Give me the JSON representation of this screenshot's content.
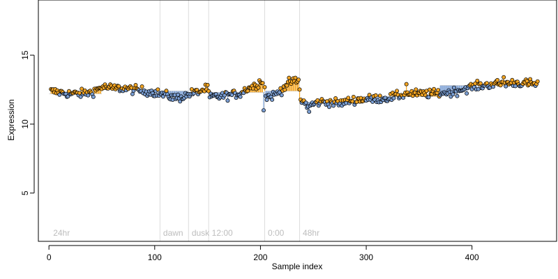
{
  "chart_data": {
    "type": "scatter",
    "title": "",
    "xlabel": "Sample index",
    "ylabel": "Expression",
    "xlim": [
      -10,
      480
    ],
    "ylim": [
      1.5,
      19
    ],
    "x_ticks": [
      0,
      100,
      200,
      300,
      400
    ],
    "y_ticks": [
      5,
      10,
      15
    ],
    "grid": false,
    "colors": {
      "above": "#f5a623",
      "below": "#7b9fd4",
      "point_stroke": "#000000",
      "divider": "#dcdcdc",
      "phase_label": "#bdbdbd"
    },
    "phases": [
      {
        "label": "24hr",
        "x": 2
      },
      {
        "label": "dawn",
        "x": 106
      },
      {
        "label": "dusk",
        "x": 133
      },
      {
        "label": "12:00",
        "x": 152
      },
      {
        "label": "0:00",
        "x": 205
      },
      {
        "label": "48hr",
        "x": 238
      }
    ],
    "dividers": [
      105,
      132,
      151,
      204,
      237
    ],
    "baselines": [
      {
        "x0": 0,
        "x1": 50,
        "y": 12.2
      },
      {
        "x0": 50,
        "x1": 105,
        "y": 12.5
      },
      {
        "x0": 105,
        "x1": 132,
        "y": 12.4
      },
      {
        "x0": 132,
        "x1": 151,
        "y": 12.3
      },
      {
        "x0": 151,
        "x1": 204,
        "y": 12.3
      },
      {
        "x0": 204,
        "x1": 237,
        "y": 12.4
      },
      {
        "x0": 237,
        "x1": 300,
        "y": 11.6
      },
      {
        "x0": 300,
        "x1": 370,
        "y": 12.0
      },
      {
        "x0": 370,
        "x1": 462,
        "y": 12.8
      }
    ],
    "anchors": [
      [
        0,
        12.4
      ],
      [
        10,
        12.3
      ],
      [
        20,
        12.2
      ],
      [
        30,
        12.2
      ],
      [
        40,
        12.3
      ],
      [
        50,
        12.7
      ],
      [
        60,
        12.6
      ],
      [
        70,
        12.6
      ],
      [
        80,
        12.5
      ],
      [
        90,
        12.4
      ],
      [
        100,
        12.3
      ],
      [
        105,
        12.2
      ],
      [
        110,
        12.1
      ],
      [
        115,
        12.0
      ],
      [
        120,
        11.9
      ],
      [
        125,
        11.95
      ],
      [
        131,
        12.1
      ],
      [
        132,
        12.2
      ],
      [
        140,
        12.3
      ],
      [
        150,
        12.6
      ],
      [
        152,
        11.9
      ],
      [
        155,
        12.0
      ],
      [
        160,
        12.0
      ],
      [
        170,
        12.1
      ],
      [
        180,
        12.2
      ],
      [
        188,
        12.6
      ],
      [
        195,
        12.8
      ],
      [
        200,
        13.1
      ],
      [
        203,
        13.2
      ],
      [
        205,
        12.0
      ],
      [
        210,
        12.0
      ],
      [
        215,
        12.2
      ],
      [
        220,
        12.5
      ],
      [
        225,
        12.9
      ],
      [
        230,
        13.1
      ],
      [
        236,
        13.1
      ],
      [
        238,
        11.8
      ],
      [
        245,
        11.3
      ],
      [
        255,
        11.6
      ],
      [
        265,
        11.6
      ],
      [
        275,
        11.5
      ],
      [
        285,
        11.7
      ],
      [
        295,
        11.8
      ],
      [
        300,
        11.8
      ],
      [
        320,
        11.9
      ],
      [
        340,
        12.2
      ],
      [
        360,
        12.2
      ],
      [
        380,
        12.3
      ],
      [
        400,
        12.7
      ],
      [
        420,
        12.9
      ],
      [
        440,
        13.0
      ],
      [
        462,
        12.9
      ]
    ],
    "notes": "Each point is one sample; points above the local baseline are orange, below are blue, with a vertical segment drawn from the baseline to the point."
  }
}
